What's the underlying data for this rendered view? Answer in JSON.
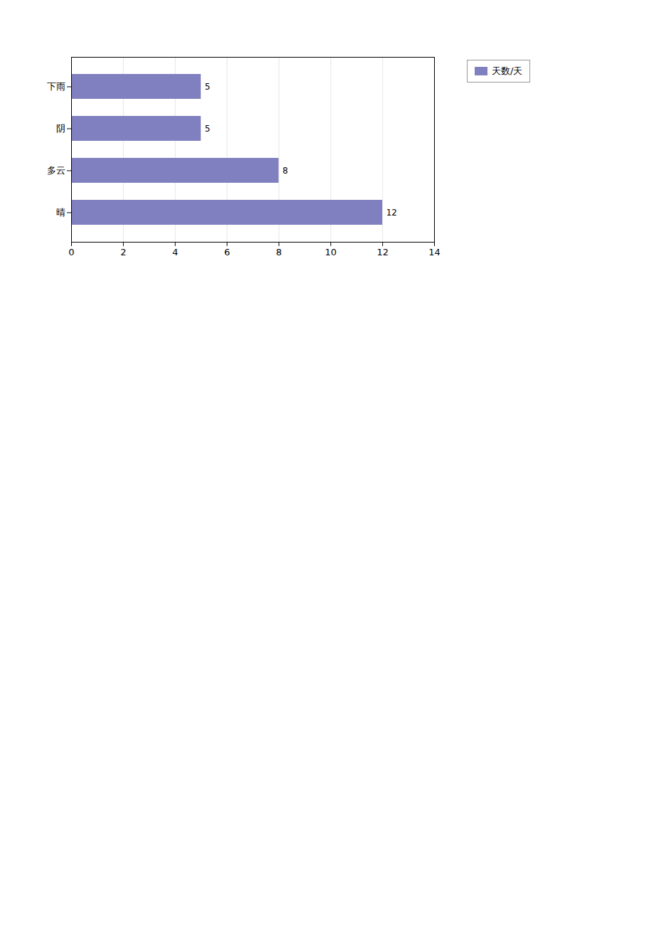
{
  "chart_data": {
    "type": "bar",
    "orientation": "horizontal",
    "categories": [
      "晴",
      "多云",
      "阴",
      "下雨"
    ],
    "series": [
      {
        "name": "天数/天",
        "color": "#8080c0",
        "values": [
          12,
          8,
          5,
          5
        ]
      }
    ],
    "xlim": [
      0,
      14
    ],
    "xticks": [
      0,
      2,
      4,
      6,
      8,
      10,
      12,
      14
    ],
    "grid": true,
    "data_labels": true,
    "legend": "right"
  }
}
